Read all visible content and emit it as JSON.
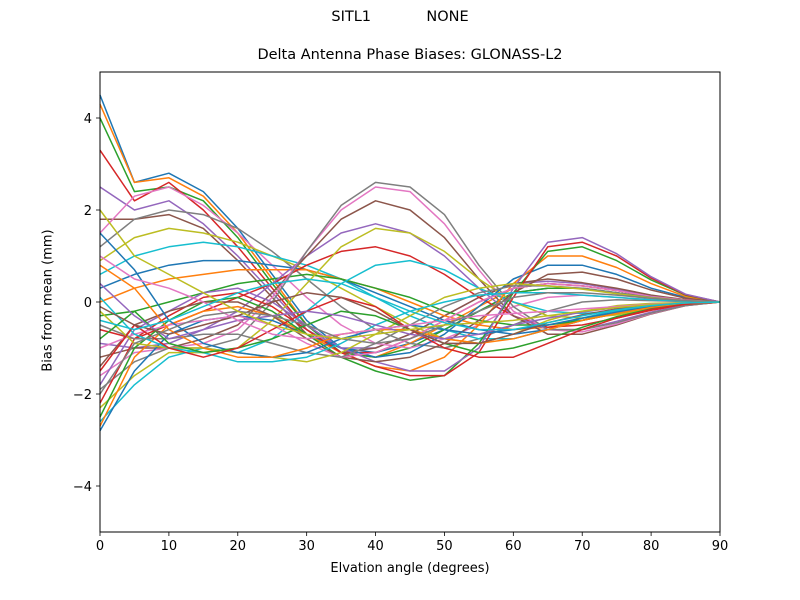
{
  "header": {
    "station": "SITL1",
    "model": "NONE"
  },
  "chart_data": {
    "type": "line",
    "title": "Delta Antenna Phase Biases: GLONASS-L2",
    "xlabel": "Elvation angle (degrees)",
    "ylabel": "Bias from mean (mm)",
    "xlim": [
      0,
      90
    ],
    "ylim": [
      -5,
      5
    ],
    "xticks": [
      0,
      10,
      20,
      30,
      40,
      50,
      60,
      70,
      80,
      90
    ],
    "yticks": [
      -4,
      -2,
      0,
      2,
      4
    ],
    "ytick_labels": [
      "−4",
      "−2",
      "0",
      "2",
      "4"
    ],
    "grid": false,
    "legend": "none",
    "x": [
      0,
      5,
      10,
      15,
      20,
      25,
      30,
      35,
      40,
      45,
      50,
      55,
      60,
      65,
      70,
      75,
      80,
      85,
      90
    ],
    "colors": [
      "#1f77b4",
      "#ff7f0e",
      "#2ca02c",
      "#d62728",
      "#9467bd",
      "#8c564b",
      "#e377c2",
      "#7f7f7f",
      "#bcbd22",
      "#17becf"
    ],
    "series": [
      {
        "values": [
          4.5,
          2.6,
          2.8,
          2.4,
          1.6,
          0.6,
          -0.4,
          -1.0,
          -1.1,
          -0.9,
          -0.6,
          -0.2,
          0.2,
          0.3,
          0.3,
          0.2,
          0.1,
          0.05,
          0
        ]
      },
      {
        "values": [
          4.3,
          2.6,
          2.7,
          2.3,
          1.5,
          0.5,
          -0.5,
          -1.1,
          -1.2,
          -0.9,
          -0.5,
          -0.1,
          0.3,
          0.4,
          0.35,
          0.25,
          0.12,
          0.05,
          0
        ]
      },
      {
        "values": [
          4.0,
          2.4,
          2.5,
          2.2,
          1.4,
          0.4,
          -0.5,
          -1.1,
          -1.2,
          -1.0,
          -0.6,
          -0.2,
          0.2,
          0.3,
          0.3,
          0.2,
          0.1,
          0.04,
          0
        ]
      },
      {
        "values": [
          3.3,
          2.2,
          2.6,
          2.0,
          1.2,
          0.3,
          -0.6,
          -1.1,
          -1.1,
          -0.8,
          -0.4,
          0.0,
          0.3,
          0.4,
          0.35,
          0.25,
          0.12,
          0.05,
          0
        ]
      },
      {
        "values": [
          2.5,
          2.0,
          2.2,
          1.7,
          1.0,
          0.2,
          -0.6,
          -1.0,
          -1.0,
          -0.7,
          -0.3,
          0.1,
          0.4,
          0.45,
          0.4,
          0.28,
          0.14,
          0.05,
          0
        ]
      },
      {
        "values": [
          1.8,
          1.8,
          1.9,
          1.6,
          0.9,
          0.1,
          -0.7,
          -1.1,
          -1.0,
          -0.7,
          -0.3,
          0.1,
          0.4,
          0.5,
          0.42,
          0.3,
          0.15,
          0.05,
          0
        ]
      },
      {
        "values": [
          1.5,
          2.3,
          2.5,
          2.1,
          1.5,
          0.8,
          0.1,
          -0.5,
          -0.9,
          -1.0,
          -0.8,
          -0.5,
          -0.1,
          0.1,
          0.15,
          0.1,
          0.05,
          0.02,
          0
        ]
      },
      {
        "values": [
          1.2,
          1.8,
          2.0,
          1.9,
          1.6,
          1.1,
          0.5,
          -0.1,
          -0.6,
          -0.9,
          -1.0,
          -0.8,
          -0.5,
          -0.2,
          0.0,
          0.05,
          0.03,
          0.01,
          0
        ]
      },
      {
        "values": [
          0.9,
          1.4,
          1.6,
          1.5,
          1.3,
          1.0,
          0.7,
          0.3,
          -0.1,
          -0.5,
          -0.8,
          -0.9,
          -0.7,
          -0.4,
          -0.2,
          -0.08,
          -0.03,
          -0.01,
          0
        ]
      },
      {
        "values": [
          0.6,
          1.0,
          1.2,
          1.3,
          1.2,
          1.0,
          0.8,
          0.5,
          0.1,
          -0.3,
          -0.6,
          -0.8,
          -0.8,
          -0.6,
          -0.35,
          -0.18,
          -0.07,
          -0.02,
          0
        ]
      },
      {
        "values": [
          0.3,
          0.6,
          0.8,
          0.9,
          0.9,
          0.8,
          0.7,
          0.5,
          0.2,
          -0.1,
          -0.4,
          -0.6,
          -0.7,
          -0.6,
          -0.4,
          -0.22,
          -0.1,
          -0.03,
          0
        ]
      },
      {
        "values": [
          0.0,
          0.3,
          0.5,
          0.6,
          0.7,
          0.7,
          0.7,
          0.5,
          0.3,
          0.0,
          -0.3,
          -0.5,
          -0.6,
          -0.55,
          -0.4,
          -0.25,
          -0.12,
          -0.04,
          0
        ]
      },
      {
        "values": [
          -0.3,
          -0.2,
          0.0,
          0.2,
          0.4,
          0.5,
          0.6,
          0.5,
          0.3,
          0.1,
          -0.2,
          -0.4,
          -0.5,
          -0.5,
          -0.4,
          -0.25,
          -0.12,
          -0.04,
          0
        ]
      },
      {
        "values": [
          -0.6,
          -0.8,
          -0.5,
          -0.2,
          0.1,
          0.4,
          0.8,
          1.1,
          1.2,
          1.0,
          0.6,
          0.1,
          -0.3,
          -0.55,
          -0.5,
          -0.35,
          -0.18,
          -0.06,
          0
        ]
      },
      {
        "values": [
          -0.9,
          -1.0,
          -0.9,
          -0.6,
          -0.2,
          0.4,
          1.0,
          1.5,
          1.7,
          1.5,
          1.0,
          0.3,
          -0.3,
          -0.6,
          -0.6,
          -0.42,
          -0.22,
          -0.07,
          0
        ]
      },
      {
        "values": [
          -1.2,
          -1.0,
          -1.0,
          -0.8,
          -0.5,
          0.2,
          1.0,
          1.8,
          2.2,
          2.0,
          1.4,
          0.5,
          -0.3,
          -0.7,
          -0.7,
          -0.5,
          -0.26,
          -0.08,
          0
        ]
      },
      {
        "values": [
          -1.6,
          -1.1,
          -1.0,
          -0.9,
          -0.6,
          0.1,
          1.1,
          2.0,
          2.5,
          2.4,
          1.7,
          0.7,
          -0.2,
          -0.6,
          -0.65,
          -0.48,
          -0.25,
          -0.08,
          0
        ]
      },
      {
        "values": [
          -1.9,
          -1.3,
          -1.0,
          -1.0,
          -0.8,
          0.0,
          1.1,
          2.1,
          2.6,
          2.5,
          1.9,
          0.8,
          -0.1,
          -0.6,
          -0.6,
          -0.45,
          -0.24,
          -0.08,
          0
        ]
      },
      {
        "values": [
          -2.3,
          -1.6,
          -1.1,
          -1.1,
          -1.0,
          -0.4,
          0.4,
          1.2,
          1.6,
          1.5,
          1.1,
          0.5,
          0.0,
          -0.3,
          -0.35,
          -0.28,
          -0.15,
          -0.05,
          0
        ]
      },
      {
        "values": [
          -2.6,
          -1.8,
          -1.2,
          -1.0,
          -1.1,
          -0.8,
          -0.2,
          0.4,
          0.8,
          0.9,
          0.7,
          0.3,
          0.0,
          -0.2,
          -0.25,
          -0.2,
          -0.1,
          -0.03,
          0
        ]
      },
      {
        "values": [
          -2.8,
          -1.5,
          -0.7,
          -0.4,
          -0.3,
          -0.4,
          -0.7,
          -1.0,
          -1.2,
          -1.1,
          -0.7,
          -0.1,
          0.5,
          0.8,
          0.8,
          0.6,
          0.3,
          0.1,
          0
        ]
      },
      {
        "values": [
          -2.7,
          -1.2,
          -0.5,
          -0.2,
          -0.1,
          -0.3,
          -0.7,
          -1.1,
          -1.4,
          -1.5,
          -1.2,
          -0.5,
          0.4,
          1.0,
          1.0,
          0.75,
          0.4,
          0.12,
          0
        ]
      },
      {
        "values": [
          -2.5,
          -1.0,
          -0.4,
          0.0,
          0.1,
          -0.2,
          -0.7,
          -1.2,
          -1.5,
          -1.7,
          -1.6,
          -0.9,
          0.2,
          1.1,
          1.2,
          0.9,
          0.48,
          0.15,
          0
        ]
      },
      {
        "values": [
          -2.2,
          -0.8,
          -0.3,
          0.1,
          0.2,
          -0.1,
          -0.6,
          -1.1,
          -1.4,
          -1.6,
          -1.6,
          -1.1,
          0.1,
          1.2,
          1.3,
          1.0,
          0.52,
          0.16,
          0
        ]
      },
      {
        "values": [
          -1.8,
          -0.6,
          -0.2,
          0.2,
          0.3,
          0.0,
          -0.5,
          -1.0,
          -1.3,
          -1.5,
          -1.5,
          -1.0,
          0.3,
          1.3,
          1.4,
          1.05,
          0.55,
          0.17,
          0
        ]
      },
      {
        "values": [
          -1.4,
          -0.5,
          -0.2,
          0.0,
          0.0,
          -0.3,
          -0.8,
          -1.2,
          -1.3,
          -1.2,
          -0.9,
          -0.4,
          0.2,
          0.6,
          0.65,
          0.5,
          0.26,
          0.08,
          0
        ]
      },
      {
        "values": [
          -1.0,
          -0.7,
          -0.5,
          -0.4,
          -0.3,
          -0.5,
          -0.9,
          -1.2,
          -1.1,
          -0.8,
          -0.4,
          0.0,
          0.3,
          0.4,
          0.35,
          0.25,
          0.12,
          0.04,
          0
        ]
      },
      {
        "values": [
          -0.5,
          -0.8,
          -0.8,
          -0.7,
          -0.7,
          -0.9,
          -1.1,
          -1.2,
          -0.9,
          -0.5,
          -0.1,
          0.2,
          0.35,
          0.35,
          0.3,
          0.2,
          0.1,
          0.03,
          0
        ]
      },
      {
        "values": [
          -0.2,
          -0.9,
          -1.0,
          -1.0,
          -1.1,
          -1.2,
          -1.3,
          -1.1,
          -0.7,
          -0.3,
          0.1,
          0.3,
          0.4,
          0.35,
          0.28,
          0.18,
          0.09,
          0.03,
          0
        ]
      },
      {
        "values": [
          0.1,
          -0.7,
          -1.0,
          -1.1,
          -1.3,
          -1.3,
          -1.2,
          -0.9,
          -0.5,
          -0.2,
          0.0,
          0.15,
          0.2,
          0.2,
          0.15,
          0.1,
          0.05,
          0.02,
          0
        ]
      },
      {
        "values": [
          1.5,
          0.7,
          -0.4,
          -0.9,
          -1.1,
          -1.2,
          -1.1,
          -0.8,
          -0.6,
          -0.5,
          -0.6,
          -0.7,
          -0.6,
          -0.5,
          -0.35,
          -0.22,
          -0.1,
          -0.03,
          0
        ]
      },
      {
        "values": [
          0.8,
          0.3,
          -0.6,
          -1.0,
          -1.2,
          -1.2,
          -1.0,
          -0.7,
          -0.6,
          -0.6,
          -0.8,
          -0.9,
          -0.8,
          -0.6,
          -0.4,
          -0.25,
          -0.12,
          -0.04,
          0
        ]
      },
      {
        "values": [
          -0.8,
          -0.2,
          -0.9,
          -1.1,
          -1.0,
          -0.8,
          -0.5,
          -0.2,
          -0.3,
          -0.6,
          -0.9,
          -1.1,
          -1.0,
          -0.8,
          -0.55,
          -0.32,
          -0.15,
          -0.05,
          0
        ]
      },
      {
        "values": [
          -1.5,
          -0.5,
          -1.0,
          -1.2,
          -1.0,
          -0.6,
          -0.2,
          0.1,
          -0.1,
          -0.6,
          -1.0,
          -1.2,
          -1.2,
          -0.9,
          -0.6,
          -0.35,
          -0.16,
          -0.05,
          0
        ]
      },
      {
        "values": [
          0.4,
          -0.3,
          -0.8,
          -0.6,
          -0.4,
          -0.3,
          -0.2,
          -0.3,
          -0.5,
          -0.7,
          -0.8,
          -0.7,
          -0.5,
          -0.35,
          -0.22,
          -0.12,
          -0.06,
          -0.02,
          0
        ]
      },
      {
        "values": [
          -0.1,
          -0.5,
          -0.7,
          -0.5,
          -0.3,
          0.0,
          0.2,
          0.1,
          -0.2,
          -0.6,
          -0.9,
          -0.9,
          -0.7,
          -0.45,
          -0.28,
          -0.15,
          -0.07,
          -0.02,
          0
        ]
      },
      {
        "values": [
          1.0,
          0.5,
          0.3,
          0.0,
          -0.4,
          -0.7,
          -0.8,
          -0.7,
          -0.6,
          -0.5,
          -0.4,
          -0.3,
          -0.25,
          -0.2,
          -0.15,
          -0.1,
          -0.05,
          -0.02,
          0
        ]
      },
      {
        "values": [
          -2.0,
          -0.9,
          -0.6,
          -0.3,
          -0.2,
          -0.3,
          -0.5,
          -0.8,
          -0.9,
          -0.8,
          -0.5,
          -0.2,
          0.1,
          0.2,
          0.2,
          0.15,
          0.08,
          0.03,
          0
        ]
      },
      {
        "values": [
          2.0,
          1.0,
          0.6,
          0.2,
          -0.2,
          -0.5,
          -0.7,
          -0.8,
          -0.7,
          -0.6,
          -0.5,
          -0.45,
          -0.4,
          -0.3,
          -0.2,
          -0.12,
          -0.06,
          -0.02,
          0
        ]
      },
      {
        "values": [
          -0.4,
          -0.6,
          -0.4,
          -0.1,
          0.2,
          0.4,
          0.5,
          0.4,
          0.1,
          -0.2,
          -0.45,
          -0.6,
          -0.6,
          -0.45,
          -0.3,
          -0.17,
          -0.08,
          -0.02,
          0
        ]
      }
    ]
  }
}
